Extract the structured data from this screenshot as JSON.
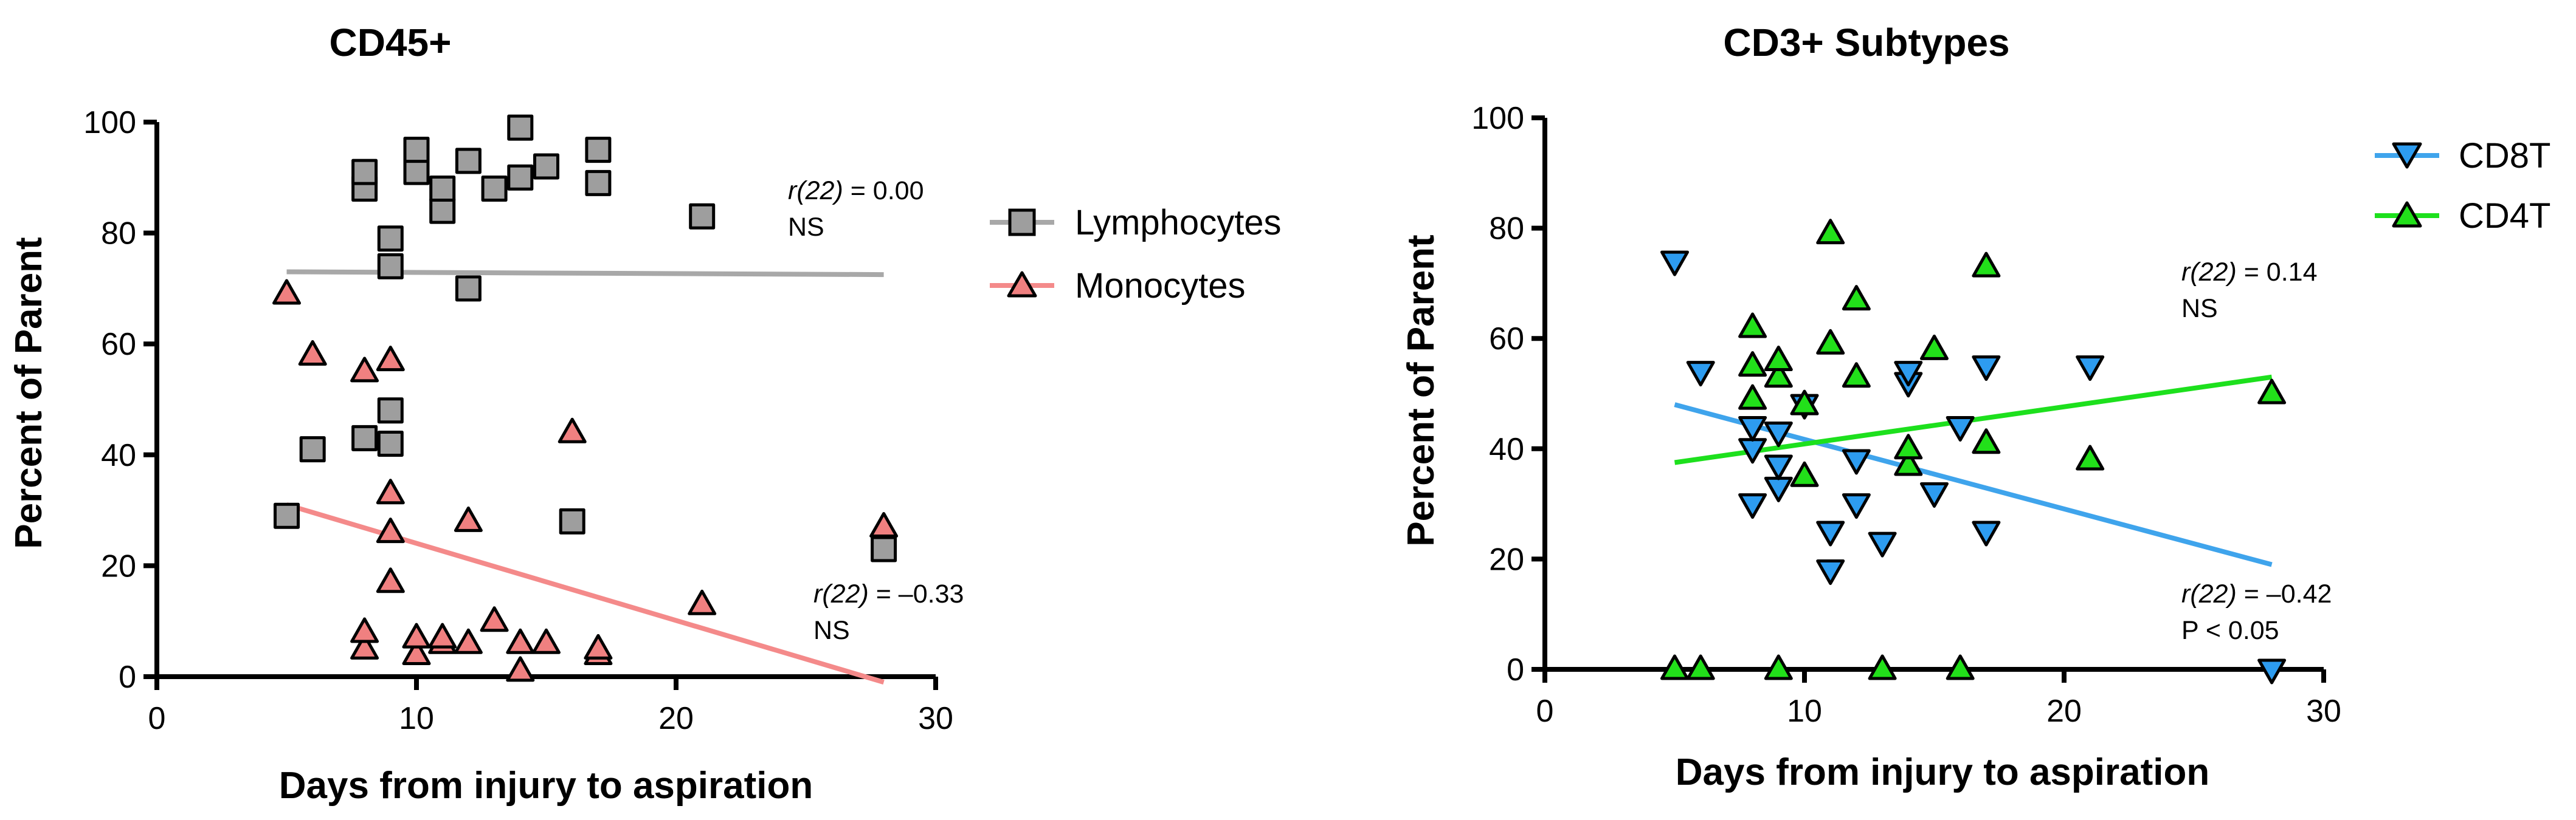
{
  "chart_data": [
    {
      "type": "scatter",
      "title": "CD45+",
      "xlabel": "Days from injury to aspiration",
      "ylabel": "Percent of Parent",
      "xlim": [
        0,
        30
      ],
      "ylim": [
        0,
        100
      ],
      "xticks": [
        "0",
        "10",
        "20",
        "30"
      ],
      "yticks": [
        "0",
        "20",
        "40",
        "60",
        "80",
        "100"
      ],
      "legend_position": "right",
      "series": [
        {
          "name": "Lymphocytes",
          "marker": "square",
          "color": "#9e9e9e",
          "line_color": "#a8a8a8",
          "points": [
            [
              5,
              29
            ],
            [
              6,
              41
            ],
            [
              8,
              43
            ],
            [
              8,
              88
            ],
            [
              8,
              91
            ],
            [
              9,
              42
            ],
            [
              9,
              48
            ],
            [
              9,
              74
            ],
            [
              9,
              79
            ],
            [
              10,
              91
            ],
            [
              10,
              95
            ],
            [
              11,
              84
            ],
            [
              11,
              88
            ],
            [
              12,
              70
            ],
            [
              12,
              93
            ],
            [
              13,
              88
            ],
            [
              14,
              90
            ],
            [
              14,
              99
            ],
            [
              15,
              92
            ],
            [
              16,
              28
            ],
            [
              17,
              89
            ],
            [
              17,
              95
            ],
            [
              21,
              83
            ],
            [
              28,
              23
            ]
          ],
          "trend": [
            [
              5,
              73
            ],
            [
              28,
              72.5
            ]
          ]
        },
        {
          "name": "Monocytes",
          "marker": "triangle-up",
          "color": "#f08080",
          "line_color": "#f48a8a",
          "points": [
            [
              5,
              69
            ],
            [
              6,
              58
            ],
            [
              8,
              5
            ],
            [
              8,
              8
            ],
            [
              8,
              55
            ],
            [
              9,
              17
            ],
            [
              9,
              26
            ],
            [
              9,
              33
            ],
            [
              9,
              57
            ],
            [
              10,
              4
            ],
            [
              10,
              7
            ],
            [
              11,
              6
            ],
            [
              11,
              7
            ],
            [
              12,
              6
            ],
            [
              12,
              28
            ],
            [
              13,
              10
            ],
            [
              14,
              1
            ],
            [
              14,
              6
            ],
            [
              15,
              6
            ],
            [
              16,
              44
            ],
            [
              17,
              4
            ],
            [
              17,
              5
            ],
            [
              21,
              13
            ],
            [
              28,
              27
            ]
          ],
          "trend": [
            [
              5,
              31
            ],
            [
              28,
              -1
            ]
          ]
        }
      ],
      "annotations": [
        {
          "stat": "r(22)",
          "value": " = 0.00",
          "note": "NS",
          "series": "Lymphocytes"
        },
        {
          "stat": "r(22)",
          "value": " = –0.33",
          "note": "NS",
          "series": "Monocytes"
        }
      ]
    },
    {
      "type": "scatter",
      "title": "CD3+ Subtypes",
      "xlabel": "Days from injury to aspiration",
      "ylabel": "Percent of Parent",
      "xlim": [
        0,
        30
      ],
      "ylim": [
        0,
        100
      ],
      "xticks": [
        "0",
        "10",
        "20",
        "30"
      ],
      "yticks": [
        "0",
        "20",
        "40",
        "60",
        "80",
        "100"
      ],
      "legend_position": "top-right",
      "series": [
        {
          "name": "CD8T",
          "marker": "triangle-down",
          "color": "#2d9cf0",
          "line_color": "#3fa4ec",
          "points": [
            [
              5,
              74
            ],
            [
              6,
              54
            ],
            [
              8,
              30
            ],
            [
              8,
              40
            ],
            [
              8,
              44
            ],
            [
              9,
              33
            ],
            [
              9,
              37
            ],
            [
              9,
              43
            ],
            [
              10,
              48
            ],
            [
              11,
              18
            ],
            [
              11,
              25
            ],
            [
              12,
              30
            ],
            [
              12,
              38
            ],
            [
              13,
              23
            ],
            [
              14,
              52
            ],
            [
              14,
              54
            ],
            [
              15,
              32
            ],
            [
              16,
              44
            ],
            [
              17,
              25
            ],
            [
              17,
              55
            ],
            [
              21,
              55
            ],
            [
              28,
              0
            ]
          ],
          "trend": [
            [
              5,
              48
            ],
            [
              28,
              19
            ]
          ]
        },
        {
          "name": "CD4T",
          "marker": "triangle-up",
          "color": "#22e01a",
          "line_color": "#1de01d",
          "points": [
            [
              5,
              0
            ],
            [
              6,
              0
            ],
            [
              8,
              49
            ],
            [
              8,
              55
            ],
            [
              8,
              62
            ],
            [
              9,
              0
            ],
            [
              9,
              53
            ],
            [
              9,
              56
            ],
            [
              10,
              35
            ],
            [
              10,
              48
            ],
            [
              11,
              59
            ],
            [
              11,
              79
            ],
            [
              12,
              53
            ],
            [
              12,
              67
            ],
            [
              13,
              0
            ],
            [
              14,
              37
            ],
            [
              14,
              40
            ],
            [
              15,
              58
            ],
            [
              16,
              0
            ],
            [
              17,
              41
            ],
            [
              17,
              73
            ],
            [
              21,
              38
            ],
            [
              28,
              50
            ]
          ],
          "trend": [
            [
              5,
              37.5
            ],
            [
              28,
              53
            ]
          ]
        }
      ],
      "annotations": [
        {
          "stat": "r(22)",
          "value": " = 0.14",
          "note": "NS",
          "series": "CD4T"
        },
        {
          "stat": "r(22)",
          "value": " = –0.42",
          "note": "P < 0.05",
          "series": "CD8T"
        }
      ]
    }
  ]
}
